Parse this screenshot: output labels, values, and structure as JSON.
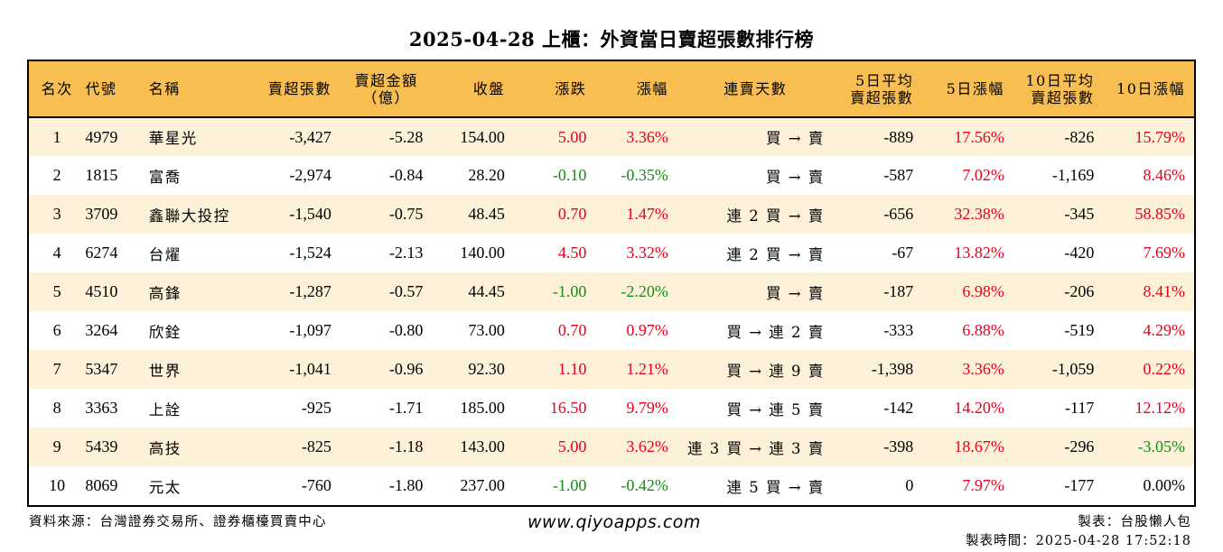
{
  "title": "2025-04-28 上櫃：外資當日賣超張數排行榜",
  "headers": {
    "rank": "名次",
    "code": "代號",
    "name": "名稱",
    "sell_shares": "賣超張數",
    "sell_amount_1": "賣超金額",
    "sell_amount_2": "（億）",
    "close": "收盤",
    "change": "漲跌",
    "change_pct": "漲幅",
    "streak": "連賣天數",
    "avg5_1": "5日平均",
    "avg5_2": "賣超張數",
    "pct5": "5日漲幅",
    "avg10_1": "10日平均",
    "avg10_2": "賣超張數",
    "pct10": "10日漲幅"
  },
  "colors": {
    "header_bg": "#f8be52",
    "row_alt_bg": "#fdf1d9",
    "up": "#e8001c",
    "down": "#178c17"
  },
  "rows": [
    {
      "rank": "1",
      "code": "4979",
      "name": "華星光",
      "shares": "-3,427",
      "amount": "-5.28",
      "close": "154.00",
      "change": "5.00",
      "change_dir": "up",
      "pct": "3.36%",
      "pct_dir": "up",
      "streak": "買 → 賣",
      "avg5": "-889",
      "pct5": "17.56%",
      "pct5_dir": "up",
      "avg10": "-826",
      "pct10": "15.79%",
      "pct10_dir": "up"
    },
    {
      "rank": "2",
      "code": "1815",
      "name": "富喬",
      "shares": "-2,974",
      "amount": "-0.84",
      "close": "28.20",
      "change": "-0.10",
      "change_dir": "down",
      "pct": "-0.35%",
      "pct_dir": "down",
      "streak": "買 → 賣",
      "avg5": "-587",
      "pct5": "7.02%",
      "pct5_dir": "up",
      "avg10": "-1,169",
      "pct10": "8.46%",
      "pct10_dir": "up"
    },
    {
      "rank": "3",
      "code": "3709",
      "name": "鑫聯大投控",
      "shares": "-1,540",
      "amount": "-0.75",
      "close": "48.45",
      "change": "0.70",
      "change_dir": "up",
      "pct": "1.47%",
      "pct_dir": "up",
      "streak": "連 2 買 → 賣",
      "avg5": "-656",
      "pct5": "32.38%",
      "pct5_dir": "up",
      "avg10": "-345",
      "pct10": "58.85%",
      "pct10_dir": "up"
    },
    {
      "rank": "4",
      "code": "6274",
      "name": "台燿",
      "shares": "-1,524",
      "amount": "-2.13",
      "close": "140.00",
      "change": "4.50",
      "change_dir": "up",
      "pct": "3.32%",
      "pct_dir": "up",
      "streak": "連 2 買 → 賣",
      "avg5": "-67",
      "pct5": "13.82%",
      "pct5_dir": "up",
      "avg10": "-420",
      "pct10": "7.69%",
      "pct10_dir": "up"
    },
    {
      "rank": "5",
      "code": "4510",
      "name": "高鋒",
      "shares": "-1,287",
      "amount": "-0.57",
      "close": "44.45",
      "change": "-1.00",
      "change_dir": "down",
      "pct": "-2.20%",
      "pct_dir": "down",
      "streak": "買 → 賣",
      "avg5": "-187",
      "pct5": "6.98%",
      "pct5_dir": "up",
      "avg10": "-206",
      "pct10": "8.41%",
      "pct10_dir": "up"
    },
    {
      "rank": "6",
      "code": "3264",
      "name": "欣銓",
      "shares": "-1,097",
      "amount": "-0.80",
      "close": "73.00",
      "change": "0.70",
      "change_dir": "up",
      "pct": "0.97%",
      "pct_dir": "up",
      "streak": "買 → 連 2 賣",
      "avg5": "-333",
      "pct5": "6.88%",
      "pct5_dir": "up",
      "avg10": "-519",
      "pct10": "4.29%",
      "pct10_dir": "up"
    },
    {
      "rank": "7",
      "code": "5347",
      "name": "世界",
      "shares": "-1,041",
      "amount": "-0.96",
      "close": "92.30",
      "change": "1.10",
      "change_dir": "up",
      "pct": "1.21%",
      "pct_dir": "up",
      "streak": "買 → 連 9 賣",
      "avg5": "-1,398",
      "pct5": "3.36%",
      "pct5_dir": "up",
      "avg10": "-1,059",
      "pct10": "0.22%",
      "pct10_dir": "up"
    },
    {
      "rank": "8",
      "code": "3363",
      "name": "上詮",
      "shares": "-925",
      "amount": "-1.71",
      "close": "185.00",
      "change": "16.50",
      "change_dir": "up",
      "pct": "9.79%",
      "pct_dir": "up",
      "streak": "買 → 連 5 賣",
      "avg5": "-142",
      "pct5": "14.20%",
      "pct5_dir": "up",
      "avg10": "-117",
      "pct10": "12.12%",
      "pct10_dir": "up"
    },
    {
      "rank": "9",
      "code": "5439",
      "name": "高技",
      "shares": "-825",
      "amount": "-1.18",
      "close": "143.00",
      "change": "5.00",
      "change_dir": "up",
      "pct": "3.62%",
      "pct_dir": "up",
      "streak": "連 3 買 → 連 3 賣",
      "avg5": "-398",
      "pct5": "18.67%",
      "pct5_dir": "up",
      "avg10": "-296",
      "pct10": "-3.05%",
      "pct10_dir": "down"
    },
    {
      "rank": "10",
      "code": "8069",
      "name": "元太",
      "shares": "-760",
      "amount": "-1.80",
      "close": "237.00",
      "change": "-1.00",
      "change_dir": "down",
      "pct": "-0.42%",
      "pct_dir": "down",
      "streak": "連 5 買 → 賣",
      "avg5": "0",
      "pct5": "7.97%",
      "pct5_dir": "up",
      "avg10": "-177",
      "pct10": "0.00%",
      "pct10_dir": "flat"
    }
  ],
  "footer": {
    "source": "資料來源：台灣證券交易所、證券櫃檯買賣中心",
    "website": "www.qiyoapps.com",
    "maker": "製表：台股懶人包",
    "made_time": "製表時間：2025-04-28 17:52:18"
  }
}
